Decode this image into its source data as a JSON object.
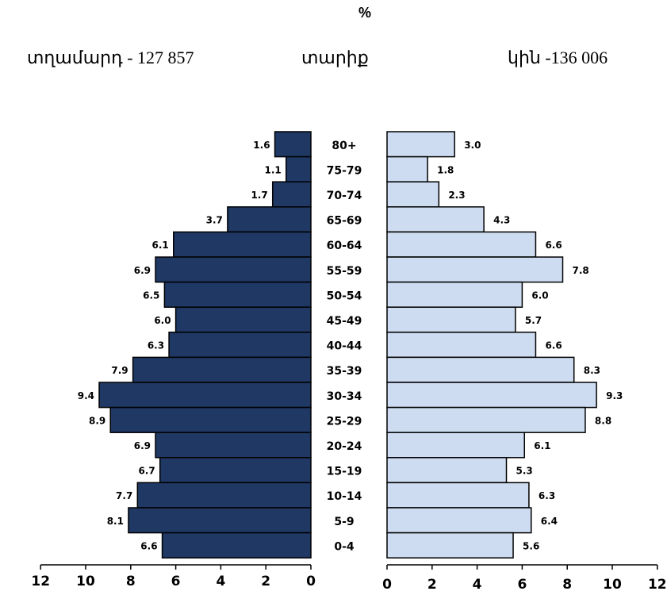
{
  "header": {
    "unit": "%",
    "male_label": "տղամարդ  - 127 857",
    "age_label": "տարիք",
    "female_label": "կին -136 006"
  },
  "colors": {
    "male": "#1f3864",
    "female": "#cddcf0",
    "stroke": "#000000"
  },
  "chart_data": {
    "type": "bar",
    "orientation": "horizontal-pyramid",
    "categories": [
      "80+",
      "75-79",
      "70-74",
      "65-69",
      "60-64",
      "55-59",
      "50-54",
      "45-49",
      "40-44",
      "35-39",
      "30-34",
      "25-29",
      "20-24",
      "15-19",
      "10-14",
      "5-9",
      "0-4"
    ],
    "series": [
      {
        "name": "տղամարդ",
        "values": [
          1.6,
          1.1,
          1.7,
          3.7,
          6.1,
          6.9,
          6.5,
          6.0,
          6.3,
          7.9,
          9.4,
          8.9,
          6.9,
          6.7,
          7.7,
          8.1,
          6.6
        ]
      },
      {
        "name": "կին",
        "values": [
          3.0,
          1.8,
          2.3,
          4.3,
          6.6,
          7.8,
          6.0,
          5.7,
          6.6,
          8.3,
          9.3,
          8.8,
          6.1,
          5.3,
          6.3,
          6.4,
          5.6
        ]
      }
    ],
    "value_labels_male": [
      "1.6",
      "1.1",
      "1.7",
      "3.7",
      "6.1",
      "6.9",
      "6.5",
      "6.0",
      "6.3",
      "7.9",
      "9.4",
      "8.9",
      "6.9",
      "6.7",
      "7.7",
      "8.1",
      "6.6"
    ],
    "value_labels_female": [
      "3.0",
      "1.8",
      "2.3",
      "4.3",
      "6.6",
      "7.8",
      "6.0",
      "5.7",
      "6.6",
      "8.3",
      "9.3",
      "8.8",
      "6.1",
      "5.3",
      "6.3",
      "6.4",
      "5.6"
    ],
    "xlim": [
      0,
      12
    ],
    "xticks": [
      "0",
      "2",
      "4",
      "6",
      "8",
      "10",
      "12"
    ],
    "male_axis_ticks": [
      "12",
      "10",
      "8",
      "6",
      "4",
      "2",
      "0"
    ],
    "grid": false,
    "xlabel": "",
    "ylabel": "տարիք"
  }
}
